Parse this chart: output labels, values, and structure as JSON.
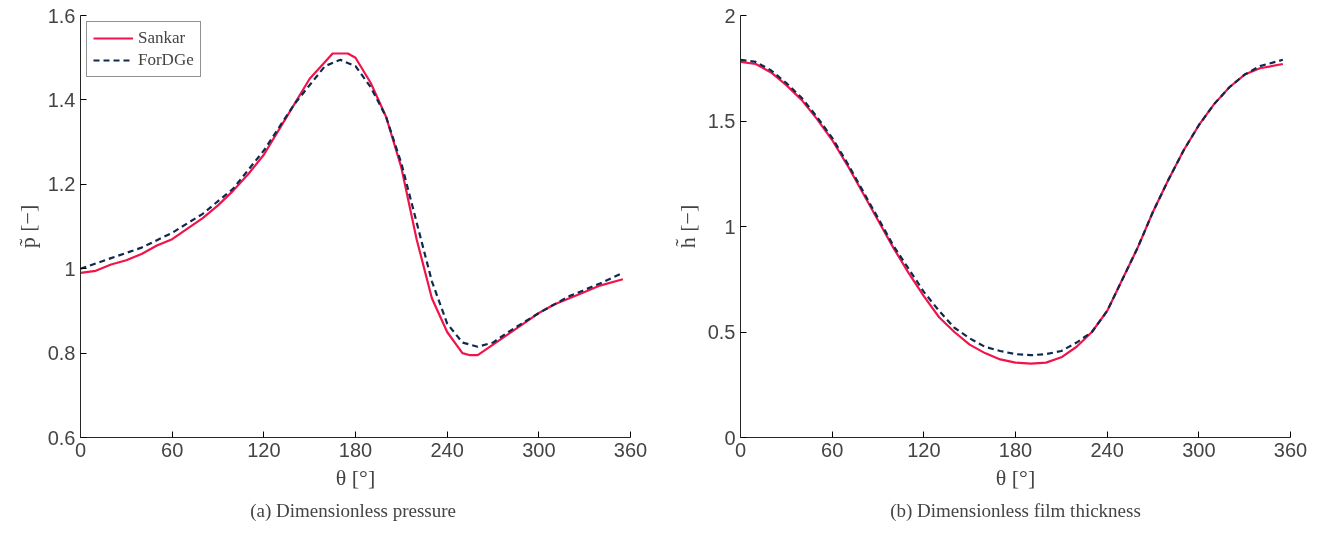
{
  "chart_data": [
    {
      "type": "line",
      "title": "(a)  Dimensionless pressure",
      "xlabel": "θ [°]",
      "ylabel": "p̃ [−]",
      "xlim": [
        0,
        360
      ],
      "ylim": [
        0.6,
        1.6
      ],
      "xticks": [
        0,
        60,
        120,
        180,
        240,
        300,
        360
      ],
      "yticks": [
        0.6,
        0.8,
        1,
        1.2,
        1.4,
        1.6
      ],
      "grid": false,
      "legend": "top left",
      "series": [
        {
          "name": "Sankar",
          "color": "#f0144a",
          "line_style": "solid",
          "x": [
            0,
            10,
            20,
            30,
            40,
            50,
            60,
            70,
            80,
            90,
            100,
            110,
            120,
            130,
            140,
            150,
            160,
            165,
            175,
            180,
            190,
            200,
            210,
            220,
            230,
            240,
            250,
            255,
            260,
            270,
            280,
            290,
            300,
            310,
            320,
            330,
            340,
            355
          ],
          "values": [
            0.99,
            0.995,
            1.01,
            1.02,
            1.035,
            1.055,
            1.07,
            1.095,
            1.12,
            1.15,
            1.185,
            1.225,
            1.27,
            1.33,
            1.39,
            1.45,
            1.49,
            1.51,
            1.51,
            1.5,
            1.44,
            1.36,
            1.24,
            1.07,
            0.93,
            0.85,
            0.8,
            0.795,
            0.795,
            0.82,
            0.845,
            0.87,
            0.895,
            0.915,
            0.93,
            0.945,
            0.96,
            0.975
          ]
        },
        {
          "name": "ForDGe",
          "color": "#0d2a4f",
          "line_style": "dashed",
          "x": [
            0,
            20,
            40,
            60,
            80,
            100,
            120,
            140,
            160,
            170,
            180,
            190,
            200,
            210,
            220,
            230,
            240,
            250,
            260,
            270,
            280,
            300,
            320,
            340,
            355
          ],
          "values": [
            1.0,
            1.025,
            1.05,
            1.085,
            1.13,
            1.19,
            1.28,
            1.39,
            1.48,
            1.495,
            1.48,
            1.43,
            1.36,
            1.25,
            1.11,
            0.97,
            0.87,
            0.825,
            0.815,
            0.825,
            0.85,
            0.895,
            0.935,
            0.965,
            0.99
          ]
        }
      ]
    },
    {
      "type": "line",
      "title": "(b) Dimensionless film thickness",
      "xlabel": "θ [°]",
      "ylabel": "h̃ [−]",
      "xlim": [
        0,
        360
      ],
      "ylim": [
        0,
        2
      ],
      "xticks": [
        0,
        60,
        120,
        180,
        240,
        300,
        360
      ],
      "yticks": [
        0,
        0.5,
        1,
        1.5,
        2
      ],
      "grid": false,
      "series": [
        {
          "color": "#f0144a",
          "line_style": "solid",
          "x": [
            0,
            10,
            20,
            30,
            40,
            50,
            60,
            70,
            80,
            90,
            100,
            110,
            120,
            130,
            140,
            150,
            160,
            170,
            180,
            190,
            200,
            210,
            220,
            230,
            240,
            250,
            260,
            270,
            280,
            290,
            300,
            310,
            320,
            330,
            340,
            355
          ],
          "values": [
            1.78,
            1.77,
            1.73,
            1.67,
            1.6,
            1.51,
            1.41,
            1.29,
            1.16,
            1.03,
            0.9,
            0.78,
            0.67,
            0.57,
            0.5,
            0.44,
            0.4,
            0.37,
            0.355,
            0.35,
            0.355,
            0.38,
            0.43,
            0.5,
            0.6,
            0.75,
            0.9,
            1.07,
            1.22,
            1.36,
            1.48,
            1.58,
            1.66,
            1.72,
            1.75,
            1.77
          ]
        },
        {
          "color": "#0d2a4f",
          "line_style": "dashed",
          "x": [
            0,
            10,
            20,
            30,
            40,
            50,
            60,
            70,
            80,
            90,
            100,
            110,
            120,
            130,
            140,
            150,
            160,
            170,
            180,
            190,
            200,
            210,
            220,
            230,
            240,
            250,
            260,
            270,
            280,
            290,
            300,
            310,
            320,
            330,
            340,
            355
          ],
          "values": [
            1.79,
            1.78,
            1.74,
            1.68,
            1.61,
            1.52,
            1.42,
            1.3,
            1.17,
            1.04,
            0.91,
            0.8,
            0.69,
            0.6,
            0.52,
            0.47,
            0.43,
            0.41,
            0.395,
            0.39,
            0.395,
            0.41,
            0.45,
            0.5,
            0.6,
            0.75,
            0.9,
            1.07,
            1.22,
            1.36,
            1.48,
            1.58,
            1.66,
            1.72,
            1.76,
            1.79
          ]
        }
      ]
    }
  ]
}
